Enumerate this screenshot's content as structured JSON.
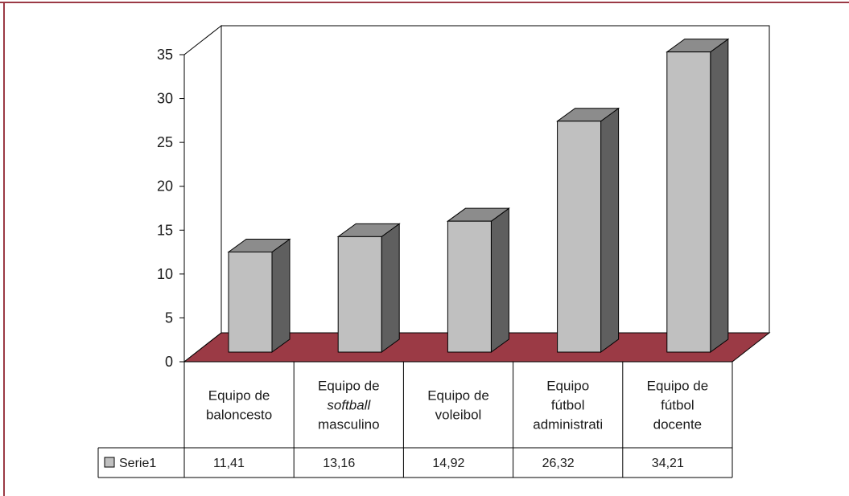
{
  "chart_data": {
    "type": "bar",
    "style": "3d-column",
    "categories": [
      [
        "Equipo de",
        "baloncesto"
      ],
      [
        "Equipo de",
        "softball",
        "masculino"
      ],
      [
        "Equipo de",
        "voleibol"
      ],
      [
        "Equipo",
        "fútbol",
        "administrati"
      ],
      [
        "Equipo de",
        "fútbol",
        "docente"
      ]
    ],
    "italic_words": [
      "softball"
    ],
    "series": [
      {
        "name": "Serie1",
        "values": [
          11.41,
          13.16,
          14.92,
          26.32,
          34.21
        ],
        "labels": [
          "11,41",
          "13,16",
          "14,92",
          "26,32",
          "34,21"
        ]
      }
    ],
    "yticks": [
      "0",
      "5",
      "10",
      "15",
      "20",
      "25",
      "30",
      "35"
    ],
    "ylim": [
      0,
      35
    ],
    "grid": false,
    "legend": "data-table",
    "colors": {
      "bar_front": "#c0c0c0",
      "bar_side": "#5f5f5f",
      "bar_top": "#8c8c8c",
      "floor": "#9b3a45",
      "frame": "#9b3a45"
    }
  }
}
